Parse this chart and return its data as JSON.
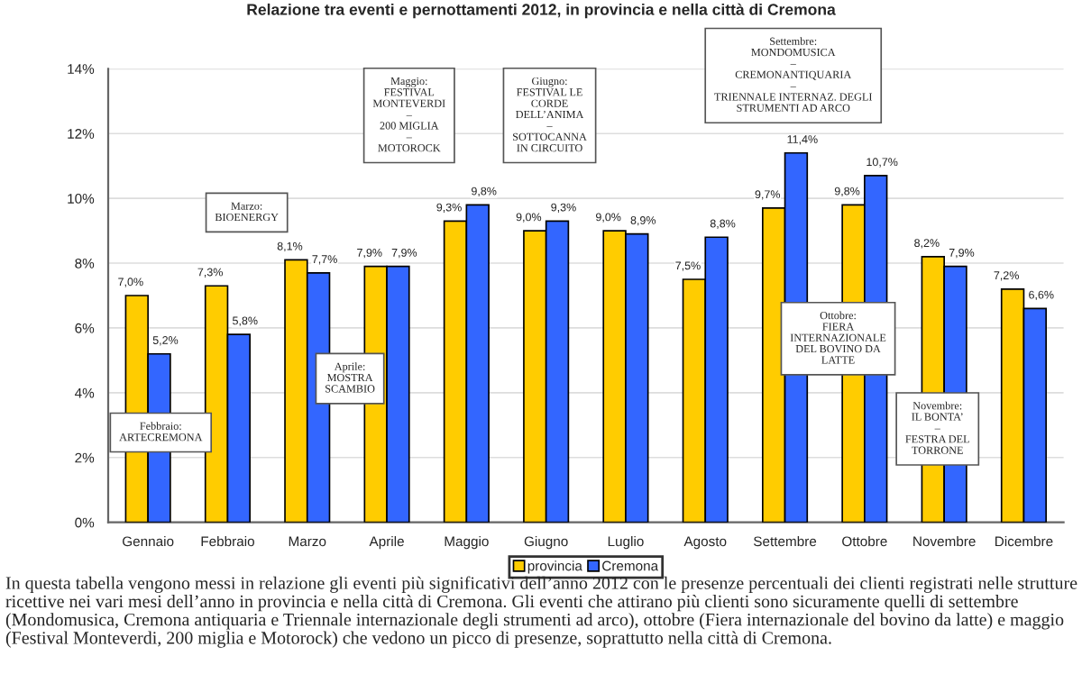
{
  "chart_data": {
    "type": "bar",
    "title": "Relazione tra eventi e pernottamenti 2012, in provincia e nella città di Cremona",
    "categories": [
      "Gennaio",
      "Febbraio",
      "Marzo",
      "Aprile",
      "Maggio",
      "Giugno",
      "Luglio",
      "Agosto",
      "Settembre",
      "Ottobre",
      "Novembre",
      "Dicembre"
    ],
    "series": [
      {
        "name": "provincia",
        "color": "#ffcc00",
        "values": [
          7.0,
          7.3,
          8.1,
          7.9,
          9.3,
          9.0,
          9.0,
          7.5,
          9.7,
          9.8,
          8.2,
          7.2
        ],
        "value_labels": [
          "7,0%",
          "7,3%",
          "8,1%",
          "7,9%",
          "9,3%",
          "9,0%",
          "9,0%",
          "7,5%",
          "9,7%",
          "9,8%",
          "8,2%",
          "7,2%"
        ]
      },
      {
        "name": "Cremona",
        "color": "#3366ff",
        "values": [
          5.2,
          5.8,
          7.7,
          7.9,
          9.8,
          9.3,
          8.9,
          8.8,
          11.4,
          10.7,
          7.9,
          6.6
        ],
        "value_labels": [
          "5,2%",
          "5,8%",
          "7,7%",
          "7,9%",
          "9,8%",
          "9,3%",
          "8,9%",
          "8,8%",
          "11,4%",
          "10,7%",
          "7,9%",
          "6,6%"
        ]
      }
    ],
    "ylim": [
      0,
      14
    ],
    "yticks": [
      {
        "value": 0,
        "label": "0%"
      },
      {
        "value": 2,
        "label": "2%"
      },
      {
        "value": 4,
        "label": "4%"
      },
      {
        "value": 6,
        "label": "6%"
      },
      {
        "value": 8,
        "label": "8%"
      },
      {
        "value": 10,
        "label": "10%"
      },
      {
        "value": 12,
        "label": "12%"
      },
      {
        "value": 14,
        "label": "14%"
      }
    ],
    "grid": "y",
    "legend": "bottom",
    "annotations": [
      "Febbraio:\nARTECREMONA",
      "Marzo:\nBIOENERGY",
      "Aprile:\nMOSTRA\nSCAMBIO",
      "Maggio:\nFESTIVAL\nMONTEVERDI\n–\n200 MIGLIA\n–\nMOTOROCK",
      "Giugno:\nFESTIVAL LE\nCORDE\nDELL’ANIMA\n–\nSOTTOCANNA\nIN CIRCUITO",
      "Settembre:\nMONDOMUSICA\n–\nCREMONANTIQUARIA\n–\nTRIENNALE INTERNAZ. DEGLI\nSTRUMENTI AD ARCO",
      "Ottobre:\nFIERA\nINTERNAZIONALE\nDEL BOVINO DA\nLATTE",
      "Novembre:\nIL BONTA’\n–\nFESTRA DEL\nTORRONE",
      "In questa tabella vengono messi in relazione gli eventi più significativi dell’anno 2012 con le presenze percentuali dei clienti registrati nelle strutture ricettive nei vari mesi dell’anno in provincia e nella città di Cremona. Gli eventi che attirano più clienti sono sicuramente quelli di settembre (Mondomusica, Cremona antiquaria e Triennale internazionale degli strumenti ad arco), ottobre (Fiera internazionale del bovino da latte) e maggio (Festival Monteverdi, 200 miglia e Motorock) che vedono un picco di presenze, soprattutto nella città di Cremona."
    ]
  }
}
